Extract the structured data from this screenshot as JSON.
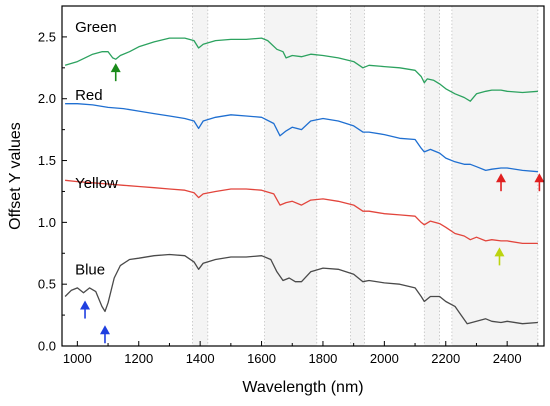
{
  "chart_data": {
    "type": "line",
    "xlabel": "Wavelength (nm)",
    "ylabel": "Offset Y values",
    "xlim": [
      950,
      2520
    ],
    "ylim": [
      0.0,
      2.75
    ],
    "xticks": [
      1000,
      1200,
      1400,
      1600,
      1800,
      2000,
      2200,
      2400
    ],
    "xtick_labels": [
      "1000",
      "1200",
      "1400",
      "1600",
      "1800",
      "2000",
      "2200",
      "2400"
    ],
    "yticks": [
      0.0,
      0.5,
      1.0,
      1.5,
      2.0,
      2.5
    ],
    "ytick_labels": [
      "0.0",
      "0.5",
      "1.0",
      "1.5",
      "2.0",
      "2.5"
    ],
    "grid": false,
    "shaded_bands": [
      [
        1375,
        1425
      ],
      [
        1610,
        1780
      ],
      [
        1890,
        1935
      ],
      [
        2130,
        2180
      ],
      [
        2220,
        2500
      ]
    ],
    "series": [
      {
        "name": "Green",
        "color": "#2ca25f",
        "label_position": [
          960,
          2.58
        ],
        "x": [
          960,
          1000,
          1050,
          1080,
          1100,
          1115,
          1125,
          1140,
          1170,
          1200,
          1250,
          1300,
          1350,
          1380,
          1395,
          1410,
          1450,
          1500,
          1550,
          1600,
          1620,
          1650,
          1670,
          1680,
          1700,
          1730,
          1760,
          1800,
          1850,
          1900,
          1930,
          1950,
          2000,
          2050,
          2100,
          2120,
          2130,
          2140,
          2160,
          2180,
          2200,
          2230,
          2260,
          2280,
          2300,
          2330,
          2350,
          2380,
          2400,
          2450,
          2500
        ],
        "values": [
          2.27,
          2.3,
          2.36,
          2.38,
          2.38,
          2.33,
          2.32,
          2.35,
          2.38,
          2.42,
          2.46,
          2.49,
          2.49,
          2.47,
          2.41,
          2.44,
          2.47,
          2.48,
          2.48,
          2.49,
          2.47,
          2.4,
          2.38,
          2.33,
          2.35,
          2.34,
          2.36,
          2.35,
          2.33,
          2.3,
          2.25,
          2.27,
          2.26,
          2.25,
          2.23,
          2.18,
          2.13,
          2.16,
          2.15,
          2.12,
          2.08,
          2.04,
          2.01,
          1.98,
          2.04,
          2.06,
          2.07,
          2.07,
          2.06,
          2.05,
          2.06
        ]
      },
      {
        "name": "Red",
        "color": "#1f6fd1",
        "label_position": [
          960,
          2.03
        ],
        "x": [
          960,
          1000,
          1050,
          1100,
          1150,
          1200,
          1250,
          1300,
          1350,
          1380,
          1395,
          1410,
          1450,
          1500,
          1550,
          1600,
          1640,
          1660,
          1680,
          1700,
          1730,
          1760,
          1800,
          1850,
          1900,
          1930,
          1950,
          2000,
          2050,
          2100,
          2120,
          2130,
          2150,
          2180,
          2200,
          2230,
          2260,
          2280,
          2300,
          2330,
          2350,
          2380,
          2400,
          2450,
          2500
        ],
        "values": [
          1.96,
          1.96,
          1.95,
          1.93,
          1.92,
          1.9,
          1.88,
          1.86,
          1.84,
          1.82,
          1.76,
          1.82,
          1.85,
          1.87,
          1.86,
          1.85,
          1.8,
          1.7,
          1.74,
          1.77,
          1.75,
          1.82,
          1.84,
          1.82,
          1.78,
          1.73,
          1.73,
          1.71,
          1.68,
          1.67,
          1.6,
          1.57,
          1.59,
          1.56,
          1.52,
          1.49,
          1.47,
          1.47,
          1.45,
          1.42,
          1.43,
          1.44,
          1.44,
          1.42,
          1.41
        ]
      },
      {
        "name": "Yellow",
        "color": "#e2453c",
        "label_position": [
          960,
          1.32
        ],
        "x": [
          960,
          1000,
          1050,
          1100,
          1150,
          1200,
          1250,
          1300,
          1350,
          1380,
          1395,
          1410,
          1450,
          1500,
          1550,
          1600,
          1640,
          1660,
          1680,
          1700,
          1730,
          1760,
          1800,
          1850,
          1900,
          1930,
          1950,
          2000,
          2050,
          2100,
          2120,
          2130,
          2150,
          2180,
          2200,
          2230,
          2260,
          2280,
          2300,
          2330,
          2350,
          2380,
          2400,
          2450,
          2500
        ],
        "values": [
          1.34,
          1.33,
          1.32,
          1.31,
          1.3,
          1.29,
          1.28,
          1.27,
          1.26,
          1.24,
          1.2,
          1.23,
          1.25,
          1.27,
          1.27,
          1.26,
          1.23,
          1.14,
          1.16,
          1.17,
          1.14,
          1.18,
          1.19,
          1.17,
          1.14,
          1.09,
          1.09,
          1.07,
          1.06,
          1.05,
          1.0,
          0.98,
          1.01,
          0.99,
          0.96,
          0.91,
          0.89,
          0.86,
          0.88,
          0.85,
          0.86,
          0.85,
          0.85,
          0.83,
          0.83
        ]
      },
      {
        "name": "Blue",
        "color": "#4a4a4a",
        "label_position": [
          960,
          0.62
        ],
        "x": [
          960,
          980,
          1000,
          1020,
          1040,
          1060,
          1080,
          1090,
          1100,
          1120,
          1140,
          1170,
          1200,
          1250,
          1300,
          1350,
          1380,
          1395,
          1410,
          1450,
          1500,
          1550,
          1600,
          1630,
          1650,
          1670,
          1690,
          1710,
          1730,
          1760,
          1800,
          1850,
          1900,
          1930,
          1950,
          2000,
          2050,
          2100,
          2120,
          2130,
          2150,
          2180,
          2200,
          2230,
          2250,
          2270,
          2300,
          2330,
          2350,
          2380,
          2400,
          2450,
          2500
        ],
        "values": [
          0.4,
          0.45,
          0.47,
          0.43,
          0.47,
          0.44,
          0.32,
          0.28,
          0.35,
          0.55,
          0.65,
          0.7,
          0.71,
          0.73,
          0.74,
          0.73,
          0.68,
          0.62,
          0.67,
          0.7,
          0.72,
          0.72,
          0.73,
          0.7,
          0.6,
          0.53,
          0.55,
          0.52,
          0.52,
          0.6,
          0.63,
          0.62,
          0.58,
          0.52,
          0.53,
          0.51,
          0.5,
          0.47,
          0.4,
          0.36,
          0.4,
          0.4,
          0.36,
          0.32,
          0.25,
          0.18,
          0.2,
          0.22,
          0.2,
          0.19,
          0.2,
          0.18,
          0.19
        ]
      }
    ],
    "annotations": [
      {
        "type": "arrow",
        "color": "#1a8a1a",
        "x": 1125,
        "y": 2.32
      },
      {
        "type": "arrow",
        "color": "#1f3fe0",
        "x": 1025,
        "y": 0.4
      },
      {
        "type": "arrow",
        "color": "#1f3fe0",
        "x": 1090,
        "y": 0.2
      },
      {
        "type": "arrow",
        "color": "#e01f1f",
        "x": 2380,
        "y": 1.43
      },
      {
        "type": "arrow",
        "color": "#e01f1f",
        "x": 2505,
        "y": 1.43
      },
      {
        "type": "arrow",
        "color": "#bcd40f",
        "x": 2375,
        "y": 0.83
      }
    ]
  }
}
